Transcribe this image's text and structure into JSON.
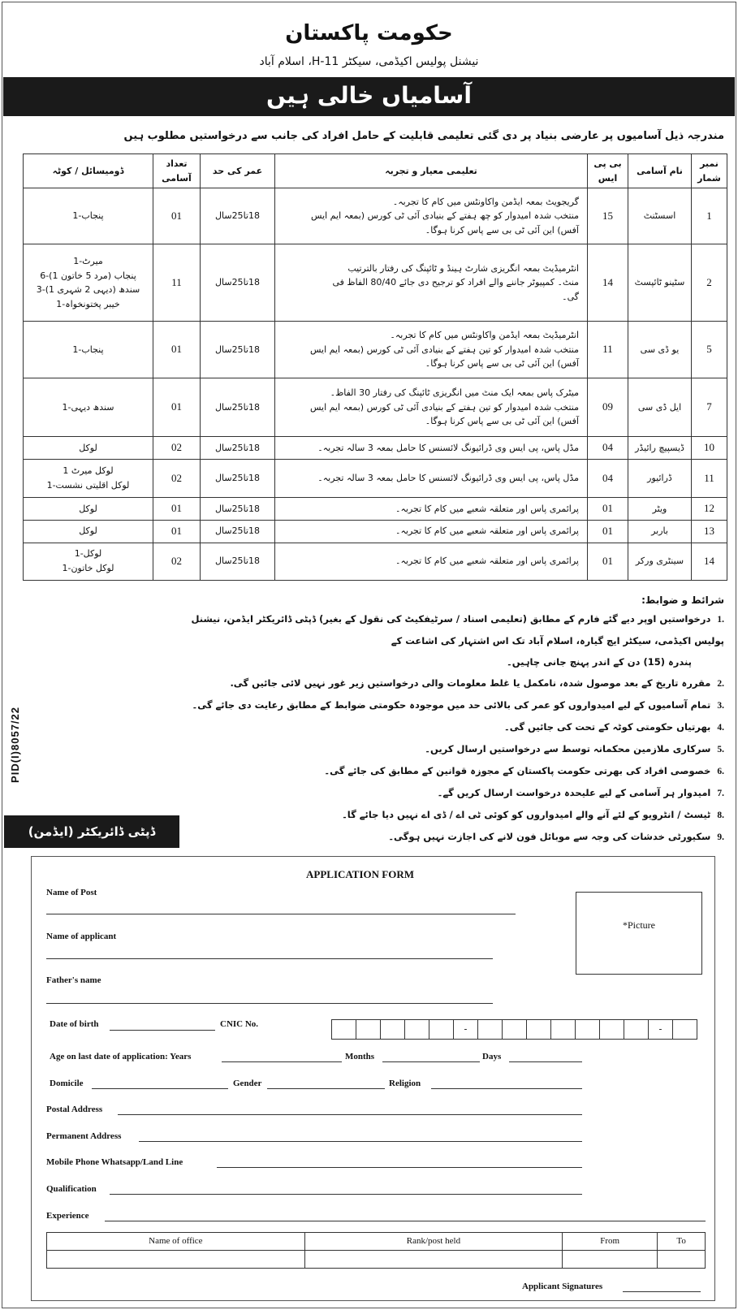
{
  "header": {
    "title": "حکومت پاکستان",
    "subtitle": "نیشنل پولیس اکیڈمی، سیکٹر H-11، اسلام آباد",
    "banner": "آسامیاں خالی ہیں",
    "intro": "مندرجہ ذیل آسامیوں پر عارضی بنیاد پر دی گئی تعلیمی قابلیت کے حامل افراد کی جانب سے درخواستیں مطلوب ہیں"
  },
  "table": {
    "headers": [
      "نمبر شمار",
      "نام آسامی",
      "بی پی ایس",
      "تعلیمی معیار و تجربہ",
      "عمر کی حد",
      "تعداد آسامی",
      "ڈومیسائل / کوٹہ"
    ],
    "rows": [
      {
        "no": "1",
        "post": "اسسٹنٹ",
        "bps": "15",
        "qual": [
          "گریجویٹ بمعہ ایڈمن واکاونٹس میں کام کا تجربہ۔",
          "منتخب شدہ امیدوار کو چھ ہفتے کے بنیادی آئی ٹی کورس (بمعہ ایم ایس",
          "آفس) این آئی ٹی بی سے پاس کرنا ہوگا۔"
        ],
        "age": "18تا25سال",
        "count": "01",
        "domicile": [
          "پنجاب-1"
        ]
      },
      {
        "no": "2",
        "post": "سٹینو ٹائپسٹ",
        "bps": "14",
        "qual": [
          "انٹرمیڈیٹ بمعہ انگریزی شارٹ ہینڈ و ٹائپنگ کی رفتار بالترتیب",
          "منٹ۔ کمپیوٹر جاننے والے افراد کو ترجیح دی جائے 80/40 الفاظ فی",
          "گی۔"
        ],
        "age": "18تا25سال",
        "count": "11",
        "domicile": [
          "میرٹ-1",
          "پنجاب (مرد 5 خاتون 1)-6",
          "سندھ (دیہی 2 شہری 1)-3",
          "خیبر پختونخواہ-1"
        ]
      },
      {
        "no": "5",
        "post": "یو ڈی سی",
        "bps": "11",
        "qual": [
          "انٹرمیڈیٹ بمعہ ایڈمن واکاونٹس میں کام کا تجربہ۔",
          "منتخب شدہ امیدوار کو تین ہفتے کے بنیادی آئی ٹی کورس (بمعہ ایم ایس",
          "آفس) این آئی ٹی بی سے پاس کرنا ہوگا۔"
        ],
        "age": "18تا25سال",
        "count": "01",
        "domicile": [
          "پنجاب-1"
        ]
      },
      {
        "no": "7",
        "post": "ایل ڈی سی",
        "bps": "09",
        "qual": [
          "میٹرک پاس بمعہ ایک منٹ میں انگریزی ٹائپنگ کی رفتار 30 الفاظ۔",
          "منتخب شدہ امیدوار کو تین ہفتے کے بنیادی آئی ٹی کورس (بمعہ ایم ایس",
          "آفس) این آئی ٹی بی سے پاس کرنا ہوگا۔"
        ],
        "age": "18تا25سال",
        "count": "01",
        "domicile": [
          "سندھ دیہی-1"
        ]
      },
      {
        "no": "10",
        "post": "ڈیسپیچ رائیڈر",
        "bps": "04",
        "qual": [
          "مڈل پاس، پی ایس وی ڈرائیونگ لائسنس کا حامل بمعہ 3 سالہ تجربہ۔"
        ],
        "age": "18تا25سال",
        "count": "02",
        "domicile": [
          "لوکل"
        ]
      },
      {
        "no": "11",
        "post": "ڈرائیور",
        "bps": "04",
        "qual": [
          "مڈل پاس، پی ایس وی ڈرائیونگ لائسنس کا حامل بمعہ 3 سالہ تجربہ۔"
        ],
        "age": "18تا25سال",
        "count": "02",
        "domicile": [
          "لوکل میرٹ 1",
          "لوکل اقلیتی نشست-1"
        ]
      },
      {
        "no": "12",
        "post": "ویٹر",
        "bps": "01",
        "qual": [
          "پرائمری پاس اور متعلقہ شعبے میں کام کا تجربہ۔"
        ],
        "age": "18تا25سال",
        "count": "01",
        "domicile": [
          "لوکل"
        ]
      },
      {
        "no": "13",
        "post": "باربر",
        "bps": "01",
        "qual": [
          "پرائمری پاس اور متعلقہ شعبے میں کام کا تجربہ۔"
        ],
        "age": "18تا25سال",
        "count": "01",
        "domicile": [
          "لوکل"
        ]
      },
      {
        "no": "14",
        "post": "سینٹری ورکر",
        "bps": "01",
        "qual": [
          "پرائمری پاس اور متعلقہ شعبے میں کام کا تجربہ۔"
        ],
        "age": "18تا25سال",
        "count": "02",
        "domicile": [
          "لوکل-1",
          "لوکل خاتون-1"
        ]
      }
    ]
  },
  "conditions": {
    "heading": "شرائط و ضوابط:",
    "items": [
      {
        "n": ".1",
        "text": "درخواستیں اوپر دیے گئے فارم کے مطابق (تعلیمی اسناد / سرٹیفکیٹ کی نقول کے بغیر) ڈپٹی ڈائریکٹر ایڈمن، نیشنل پولیس اکیڈمی، سیکٹر ایچ گیارہ، اسلام آباد تک اس اشتہار کی اشاعت کے",
        "cont": "پندرہ (15) دن کے اندر پہنچ جانی چاہیں۔"
      },
      {
        "n": ".2",
        "text": "مقررہ تاریخ کے بعد موصول شدہ، نامکمل یا غلط معلومات والی درخواستیں زیر غور نہیں لائی جائیں گی."
      },
      {
        "n": ".3",
        "text": "تمام آسامیوں کے لیے امیدواروں کو عمر کی بالائی حد میں موجودہ حکومتی ضوابط کے مطابق رعایت دی جائے گی۔"
      },
      {
        "n": ".4",
        "text": "بھرتیاں حکومتی کوٹہ کے تحت کی جائیں گی۔"
      },
      {
        "n": ".5",
        "text": "سرکاری ملازمین محکمانہ توسط سے درخواستیں ارسال کریں۔"
      },
      {
        "n": ".6",
        "text": "خصوصی افراد کی بھرتی حکومت پاکستان کے مجوزہ قوانین کے مطابق کی جائے گی۔"
      },
      {
        "n": ".7",
        "text": "امیدوار ہر آسامی کے لیے علیحدہ درخواست ارسال کریں گے۔"
      },
      {
        "n": ".8",
        "text": "ٹیسٹ / انٹرویو کے لئے آنے والے امیدواروں کو کوئی ٹی اے / ڈی اے نہیں دیا جائے گا۔"
      },
      {
        "n": ".9",
        "text": "سکیورٹی خدشات کی وجہ سے موبائل فون لانے کی اجازت نہیں ہوگی۔"
      }
    ]
  },
  "pid": "PID(I)8057/22",
  "signatory": "ڈپٹی ڈائریکٹر (ایڈمن)",
  "form": {
    "title": "APPLICATION FORM",
    "name_of_post": "Name of Post",
    "name_of_applicant": "Name of applicant",
    "fathers_name": "Father's name",
    "picture": "*Picture",
    "dob": "Date of birth",
    "cnic": "CNIC No.",
    "cnic_dash": "-",
    "age": "Age on last date of application: Years",
    "months": "Months",
    "days": "Days",
    "domicile": "Domicile",
    "gender": "Gender",
    "religion": "Religion",
    "postal": "Postal Address",
    "permanent": "Permanent Address",
    "mobile": "Mobile Phone Whatsapp/Land Line",
    "qualification": "Qualification",
    "experience": "Experience",
    "exp_headers": [
      "Name of office",
      "Rank/post held",
      "From",
      "To"
    ],
    "signature": "Applicant Signatures"
  }
}
